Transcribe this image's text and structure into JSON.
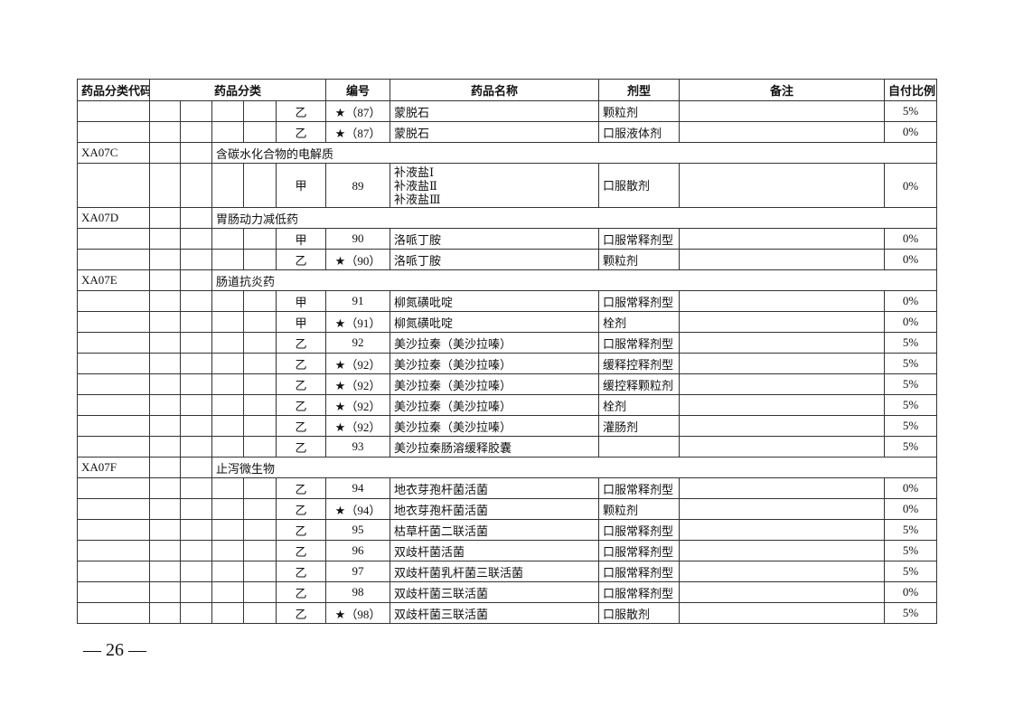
{
  "headers": {
    "code": "药品分类代码",
    "category": "药品分类",
    "number": "编号",
    "name": "药品名称",
    "form": "剂型",
    "remark": "备注",
    "ratio": "自付比例"
  },
  "rows": [
    {
      "type": "item",
      "grade": "乙",
      "no": "★（87）",
      "name": "蒙脱石",
      "form": "颗粒剂",
      "remark": "",
      "ratio": "5%"
    },
    {
      "type": "item",
      "grade": "乙",
      "no": "★（87）",
      "name": "蒙脱石",
      "form": "口服液体剂",
      "remark": "",
      "ratio": "0%"
    },
    {
      "type": "cat",
      "code": "XA07C",
      "label": "含碳水化合物的电解质"
    },
    {
      "type": "item",
      "grade": "甲",
      "no": "89",
      "name": "补液盐Ⅰ\n补液盐Ⅱ\n补液盐Ⅲ",
      "form": "口服散剂",
      "remark": "",
      "ratio": "0%"
    },
    {
      "type": "cat",
      "code": "XA07D",
      "label": "胃肠动力减低药"
    },
    {
      "type": "item",
      "grade": "甲",
      "no": "90",
      "name": "洛哌丁胺",
      "form": "口服常释剂型",
      "remark": "",
      "ratio": "0%"
    },
    {
      "type": "item",
      "grade": "乙",
      "no": "★（90）",
      "name": "洛哌丁胺",
      "form": "颗粒剂",
      "remark": "",
      "ratio": "0%"
    },
    {
      "type": "cat",
      "code": "XA07E",
      "label": "肠道抗炎药"
    },
    {
      "type": "item",
      "grade": "甲",
      "no": "91",
      "name": "柳氮磺吡啶",
      "form": "口服常释剂型",
      "remark": "",
      "ratio": "0%"
    },
    {
      "type": "item",
      "grade": "甲",
      "no": "★（91）",
      "name": "柳氮磺吡啶",
      "form": "栓剂",
      "remark": "",
      "ratio": "0%"
    },
    {
      "type": "item",
      "grade": "乙",
      "no": "92",
      "name": "美沙拉秦（美沙拉嗪）",
      "form": "口服常释剂型",
      "remark": "",
      "ratio": "5%"
    },
    {
      "type": "item",
      "grade": "乙",
      "no": "★（92）",
      "name": "美沙拉秦（美沙拉嗪）",
      "form": "缓释控释剂型",
      "remark": "",
      "ratio": "5%"
    },
    {
      "type": "item",
      "grade": "乙",
      "no": "★（92）",
      "name": "美沙拉秦（美沙拉嗪）",
      "form": "缓控释颗粒剂",
      "remark": "",
      "ratio": "5%"
    },
    {
      "type": "item",
      "grade": "乙",
      "no": "★（92）",
      "name": "美沙拉秦（美沙拉嗪）",
      "form": "栓剂",
      "remark": "",
      "ratio": "5%"
    },
    {
      "type": "item",
      "grade": "乙",
      "no": "★（92）",
      "name": "美沙拉秦（美沙拉嗪）",
      "form": "灌肠剂",
      "remark": "",
      "ratio": "5%"
    },
    {
      "type": "item",
      "grade": "乙",
      "no": "93",
      "name": "美沙拉秦肠溶缓释胶囊",
      "form": "",
      "remark": "",
      "ratio": "5%"
    },
    {
      "type": "cat",
      "code": "XA07F",
      "label": "止泻微生物"
    },
    {
      "type": "item",
      "grade": "乙",
      "no": "94",
      "name": "地衣芽孢杆菌活菌",
      "form": "口服常释剂型",
      "remark": "",
      "ratio": "0%"
    },
    {
      "type": "item",
      "grade": "乙",
      "no": "★（94）",
      "name": "地衣芽孢杆菌活菌",
      "form": "颗粒剂",
      "remark": "",
      "ratio": "0%"
    },
    {
      "type": "item",
      "grade": "乙",
      "no": "95",
      "name": "枯草杆菌二联活菌",
      "form": "口服常释剂型",
      "remark": "",
      "ratio": "5%"
    },
    {
      "type": "item",
      "grade": "乙",
      "no": "96",
      "name": "双歧杆菌活菌",
      "form": "口服常释剂型",
      "remark": "",
      "ratio": "5%"
    },
    {
      "type": "item",
      "grade": "乙",
      "no": "97",
      "name": "双歧杆菌乳杆菌三联活菌",
      "form": "口服常释剂型",
      "remark": "",
      "ratio": "5%"
    },
    {
      "type": "item",
      "grade": "乙",
      "no": "98",
      "name": "双歧杆菌三联活菌",
      "form": "口服常释剂型",
      "remark": "",
      "ratio": "0%"
    },
    {
      "type": "item",
      "grade": "乙",
      "no": "★（98）",
      "name": "双歧杆菌三联活菌",
      "form": "口服散剂",
      "remark": "",
      "ratio": "5%"
    }
  ],
  "footer": {
    "page": "— 26 —"
  }
}
